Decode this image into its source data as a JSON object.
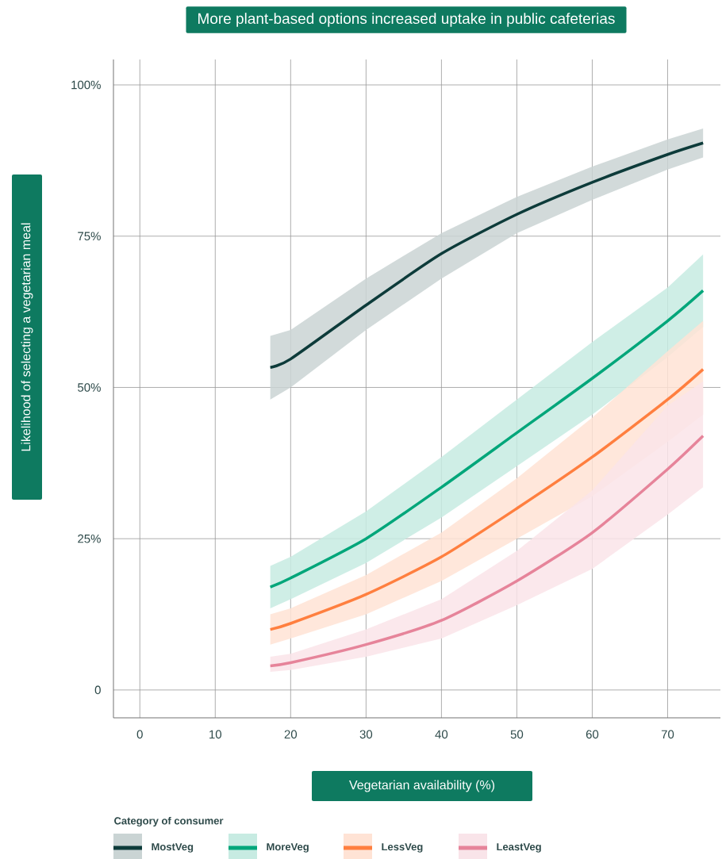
{
  "chart_data": {
    "type": "line",
    "title": "More plant-based options increased uptake in public cafeterias",
    "xlabel": "Vegetarian availability (%)",
    "ylabel": "Likelihood of selecting a vegetarian meal",
    "legend_title": "Category of consumer",
    "x": [
      17.3,
      20,
      30,
      40,
      50,
      60,
      70,
      74.7
    ],
    "series": [
      {
        "name": "MostVeg",
        "color": "#0d3b3a",
        "values": [
          53.3,
          54.7,
          63.6,
          72.1,
          78.6,
          83.9,
          88.5,
          90.4
        ],
        "lower": [
          48,
          50,
          59.5,
          68,
          75.5,
          81,
          86,
          88
        ],
        "upper": [
          58.5,
          59.5,
          68,
          75.5,
          81.5,
          86.5,
          91,
          92.8
        ]
      },
      {
        "name": "MoreVeg",
        "color": "#00a67a",
        "values": [
          17,
          18.5,
          25,
          33.5,
          42.5,
          51.5,
          61,
          66
        ],
        "lower": [
          13.5,
          15,
          21,
          28.5,
          37,
          45.5,
          55,
          60
        ],
        "upper": [
          20.5,
          22,
          29.5,
          38.5,
          48,
          57.5,
          66.5,
          72
        ]
      },
      {
        "name": "LessVeg",
        "color": "#ff7f3f",
        "values": [
          10,
          11,
          15.8,
          22,
          30,
          38.5,
          48,
          53
        ],
        "lower": [
          7.5,
          8.5,
          12.5,
          18,
          25,
          32,
          41,
          45.5
        ],
        "upper": [
          12.5,
          13.5,
          19,
          26,
          35,
          45,
          56,
          61
        ]
      },
      {
        "name": "LeastVeg",
        "color": "#e6849a",
        "values": [
          4,
          4.5,
          7.5,
          11.5,
          18,
          26,
          36.5,
          42
        ],
        "lower": [
          3,
          3.3,
          5.5,
          8.5,
          14,
          20,
          29,
          33.5
        ],
        "upper": [
          5.5,
          6,
          10,
          15,
          23,
          33,
          47,
          51
        ]
      }
    ],
    "xlim": [
      -3.5,
      77
    ],
    "ylim": [
      -4.6,
      104.2
    ],
    "xticks": [
      0,
      10,
      20,
      30,
      40,
      50,
      60,
      70
    ],
    "yticks": [
      {
        "value": 0,
        "label": "0"
      },
      {
        "value": 25,
        "label": "25%"
      },
      {
        "value": 50,
        "label": "50%"
      },
      {
        "value": 75,
        "label": "75%"
      },
      {
        "value": 100,
        "label": "100%"
      }
    ],
    "grid": true,
    "legend": "bottom",
    "marker": "none",
    "line_style": "solid"
  }
}
